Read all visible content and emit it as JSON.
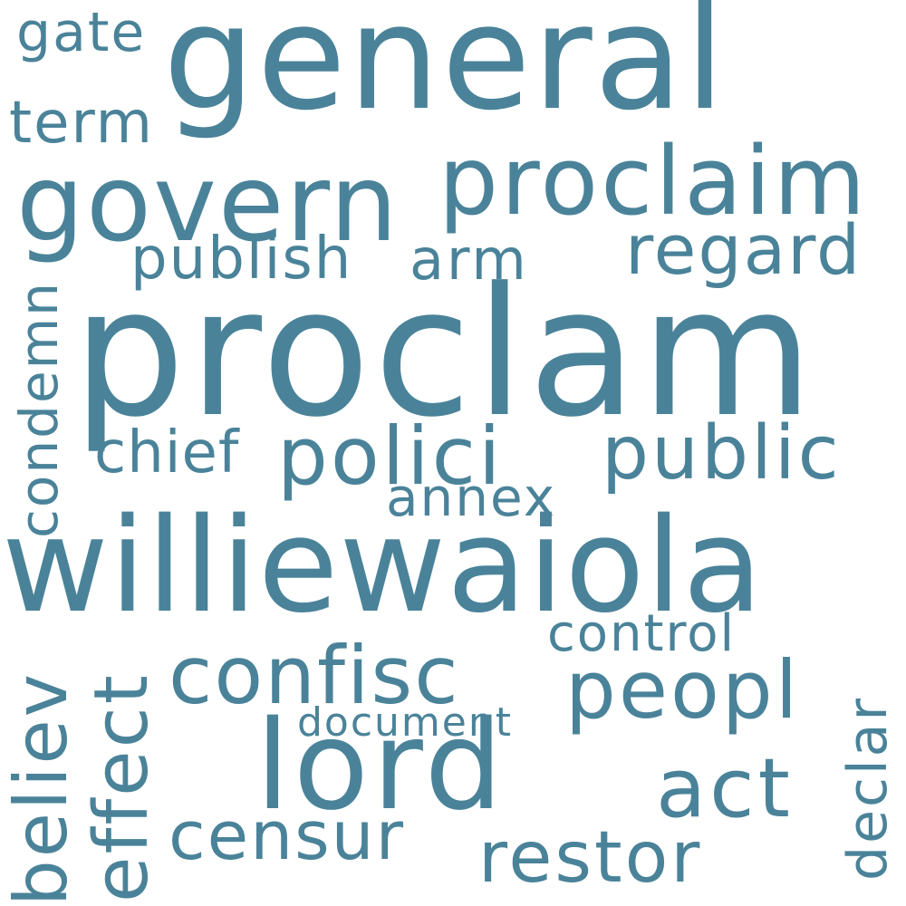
{
  "color": "#4a8399",
  "background": "#ffffff",
  "words": {
    "general": "general",
    "gate": "gate",
    "term": "term",
    "govern": "govern",
    "proclaim": "proclaim",
    "regard": "regard",
    "publish": "publish",
    "arm": "arm",
    "proclam": "proclam",
    "condemn": "condemn",
    "chief": "chief",
    "polici": "polici",
    "public": "public",
    "annex": "annex",
    "williewaiola": "williewaiola",
    "control": "control",
    "believ": "believ",
    "effect": "effect",
    "confisc": "confisc",
    "peopl": "peopl",
    "document": "document",
    "lord": "lord",
    "act": "act",
    "declar": "declar",
    "censur": "censur",
    "restor": "restor"
  }
}
